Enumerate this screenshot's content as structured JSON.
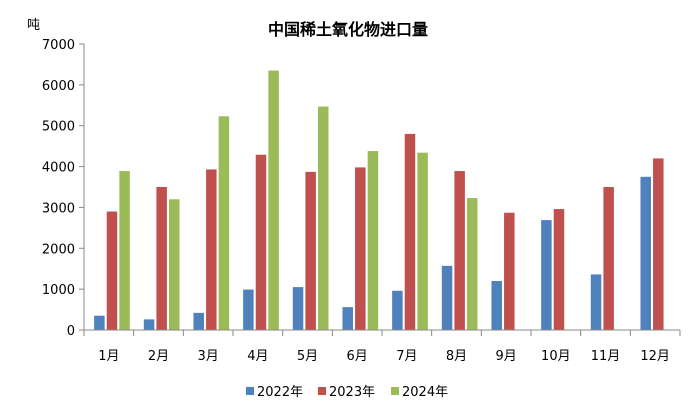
{
  "chart_data": {
    "type": "bar",
    "title": "中国稀土氧化物进口量",
    "ylabel": "吨",
    "xlabel": "",
    "ylim": [
      0,
      7000
    ],
    "yticks": [
      0,
      1000,
      2000,
      3000,
      4000,
      5000,
      6000,
      7000
    ],
    "grid": false,
    "legend_position": "bottom",
    "categories": [
      "1月",
      "2月",
      "3月",
      "4月",
      "5月",
      "6月",
      "7月",
      "8月",
      "9月",
      "10月",
      "11月",
      "12月"
    ],
    "series": [
      {
        "name": "2022年",
        "color": "#4f81bd",
        "values": [
          350,
          260,
          420,
          990,
          1050,
          560,
          960,
          1570,
          1200,
          2690,
          1360,
          3750
        ]
      },
      {
        "name": "2023年",
        "color": "#c0504d",
        "values": [
          2900,
          3500,
          3930,
          4290,
          3870,
          3980,
          4800,
          3890,
          2870,
          2960,
          3500,
          4200
        ]
      },
      {
        "name": "2024年",
        "color": "#9bbb59",
        "values": [
          3890,
          3200,
          5230,
          6350,
          5470,
          4380,
          4340,
          3230,
          null,
          null,
          null,
          null
        ]
      }
    ]
  }
}
